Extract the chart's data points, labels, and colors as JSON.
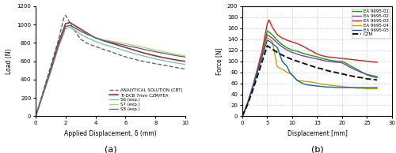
{
  "chart_a": {
    "xlabel": "Applied Displacement, δ (mm)",
    "ylabel": "Load (N)",
    "xlim": [
      0,
      10
    ],
    "ylim": [
      0,
      1200
    ],
    "yticks": [
      0,
      200,
      400,
      600,
      800,
      1000,
      1200
    ],
    "xticks": [
      0,
      2,
      4,
      6,
      8,
      10
    ],
    "label_a": "(a)",
    "analytical": {
      "x": [
        0,
        0.5,
        1.0,
        1.5,
        1.9,
        2.0,
        2.5,
        3.0,
        3.5,
        4.0,
        4.5,
        5.0,
        5.5,
        6.0,
        6.5,
        7.0,
        7.5,
        8.0,
        8.5,
        9.0,
        9.5,
        10.0
      ],
      "y": [
        0,
        270,
        540,
        820,
        1080,
        1100,
        960,
        840,
        790,
        760,
        730,
        705,
        675,
        648,
        625,
        605,
        588,
        573,
        558,
        543,
        528,
        515
      ],
      "color": "#666666",
      "style": "--",
      "lw": 1.0,
      "label": "ANALYTICAL SOLUTION (CBT)"
    },
    "czm": {
      "x": [
        0,
        0.5,
        1.0,
        1.5,
        2.0,
        2.3,
        2.5,
        3.0,
        3.5,
        4.0,
        4.5,
        5.0,
        5.5,
        6.0,
        6.5,
        7.0,
        7.5,
        8.0,
        8.5,
        9.0,
        9.5,
        10.0
      ],
      "y": [
        0,
        250,
        510,
        790,
        1010,
        1020,
        1000,
        950,
        900,
        855,
        825,
        800,
        775,
        750,
        725,
        700,
        678,
        658,
        640,
        625,
        610,
        598
      ],
      "color": "#8B3535",
      "style": "-",
      "lw": 1.2,
      "label": "Ti-DCB 7mm CZM/FEA"
    },
    "s6": {
      "x": [
        0,
        0.5,
        1.0,
        1.5,
        2.0,
        2.3,
        2.5,
        3.0,
        3.5,
        4.0,
        4.5,
        5.0,
        5.5,
        6.0,
        6.5,
        7.0,
        7.5,
        8.0,
        8.5,
        9.0,
        9.5,
        10.0
      ],
      "y": [
        0,
        240,
        480,
        740,
        955,
        970,
        950,
        895,
        850,
        815,
        785,
        762,
        738,
        712,
        688,
        665,
        645,
        625,
        608,
        592,
        578,
        565
      ],
      "color": "#70C0A0",
      "style": "-",
      "lw": 0.9,
      "label": "S6 (exp.)"
    },
    "s7": {
      "x": [
        0,
        0.5,
        1.0,
        1.5,
        2.0,
        2.3,
        2.5,
        3.0,
        3.5,
        4.0,
        4.5,
        5.0,
        5.5,
        6.0,
        6.5,
        7.0,
        7.5,
        8.0,
        8.5,
        9.0,
        9.5,
        10.0
      ],
      "y": [
        0,
        240,
        485,
        755,
        975,
        985,
        970,
        925,
        890,
        858,
        835,
        820,
        805,
        792,
        775,
        758,
        740,
        722,
        705,
        688,
        672,
        658
      ],
      "color": "#C8C870",
      "style": "-",
      "lw": 0.9,
      "label": "S7 (exp.)"
    },
    "s8": {
      "x": [
        0,
        0.5,
        1.0,
        1.5,
        2.0,
        2.3,
        2.5,
        3.0,
        3.5,
        4.0,
        4.5,
        5.0,
        5.5,
        6.0,
        6.5,
        7.0,
        7.5,
        8.0,
        8.5,
        9.0,
        9.5,
        10.0
      ],
      "y": [
        0,
        242,
        490,
        755,
        980,
        990,
        975,
        928,
        888,
        855,
        828,
        808,
        790,
        772,
        755,
        738,
        720,
        703,
        688,
        672,
        658,
        645
      ],
      "color": "#506080",
      "style": "-",
      "lw": 0.9,
      "label": "S8 (exp.)"
    }
  },
  "chart_b": {
    "xlabel": "Displacement [mm]",
    "ylabel": "Force [N]",
    "xlim": [
      0,
      30
    ],
    "ylim": [
      0,
      200
    ],
    "yticks": [
      0,
      20,
      40,
      60,
      80,
      100,
      120,
      140,
      160,
      180,
      200
    ],
    "xticks": [
      0,
      5,
      10,
      15,
      20,
      25,
      30
    ],
    "label_b": "(b)",
    "ea01": {
      "x": [
        0,
        1,
        2,
        3,
        4,
        5,
        5.5,
        6,
        7,
        8,
        9,
        10,
        11,
        12,
        13,
        14,
        15,
        16,
        17,
        18,
        19,
        20,
        21,
        22,
        23,
        24,
        25,
        26,
        27
      ],
      "y": [
        0,
        22,
        50,
        80,
        112,
        155,
        152,
        148,
        138,
        130,
        124,
        120,
        118,
        115,
        112,
        110,
        108,
        105,
        103,
        101,
        100,
        100,
        95,
        90,
        85,
        80,
        75,
        72,
        70
      ],
      "color": "#00AA00",
      "style": "-",
      "lw": 1.0,
      "label": "EA 9695-01"
    },
    "ea02": {
      "x": [
        0,
        1,
        2,
        3,
        4,
        5,
        5.5,
        6,
        7,
        8,
        9,
        10,
        11,
        12,
        13,
        14,
        15,
        16,
        17,
        18,
        19,
        20,
        21,
        22,
        23,
        24,
        25,
        26,
        27
      ],
      "y": [
        0,
        22,
        50,
        80,
        112,
        148,
        145,
        142,
        133,
        126,
        120,
        116,
        113,
        110,
        108,
        106,
        104,
        102,
        100,
        99,
        98,
        97,
        92,
        87,
        83,
        79,
        76,
        74,
        72
      ],
      "color": "#8040B0",
      "style": "-",
      "lw": 1.0,
      "label": "EA 9695-02"
    },
    "ea03": {
      "x": [
        0,
        1,
        2,
        3,
        4,
        5,
        5.3,
        5.5,
        6,
        7,
        8,
        9,
        10,
        11,
        12,
        13,
        14,
        15,
        16,
        17,
        18,
        19,
        20,
        21,
        22,
        23,
        24,
        25,
        26,
        27
      ],
      "y": [
        0,
        22,
        52,
        85,
        120,
        168,
        175,
        172,
        162,
        148,
        142,
        138,
        135,
        132,
        128,
        123,
        118,
        113,
        110,
        108,
        107,
        106,
        105,
        104,
        103,
        102,
        101,
        100,
        99,
        98
      ],
      "color": "#CC2020",
      "style": "-",
      "lw": 1.0,
      "label": "EA 9695-03"
    },
    "ea04": {
      "x": [
        0,
        1,
        2,
        3,
        4,
        5,
        5.5,
        6,
        7,
        8,
        9,
        10,
        10.5,
        11,
        12,
        13,
        14,
        15,
        16,
        17,
        18,
        19,
        20,
        21,
        22,
        23,
        24,
        25,
        26,
        27
      ],
      "y": [
        0,
        22,
        50,
        80,
        110,
        143,
        140,
        136,
        90,
        85,
        80,
        75,
        70,
        65,
        64,
        63,
        62,
        60,
        58,
        57,
        56,
        55,
        54,
        53,
        52,
        51,
        51,
        50,
        50,
        50
      ],
      "color": "#C8A000",
      "style": "-",
      "lw": 1.0,
      "label": "EA 9695-04"
    },
    "ea05": {
      "x": [
        0,
        1,
        2,
        3,
        4,
        5,
        5.5,
        6,
        7,
        8,
        9,
        9.5,
        10,
        11,
        12,
        13,
        14,
        15,
        16,
        17,
        18,
        19,
        20,
        21,
        22,
        23,
        24,
        25,
        26,
        27
      ],
      "y": [
        0,
        22,
        50,
        80,
        110,
        138,
        136,
        132,
        125,
        100,
        90,
        80,
        75,
        65,
        60,
        57,
        56,
        55,
        54,
        53,
        53,
        52,
        52,
        52,
        52,
        52,
        52,
        52,
        52,
        52
      ],
      "color": "#1060C0",
      "style": "-",
      "lw": 1.0,
      "label": "EA 9695-05"
    },
    "czm": {
      "x": [
        0,
        1,
        2,
        3,
        4,
        5,
        6,
        7,
        8,
        9,
        10,
        11,
        12,
        13,
        14,
        15,
        16,
        17,
        18,
        19,
        20,
        21,
        22,
        23,
        24,
        25,
        26,
        27
      ],
      "y": [
        0,
        20,
        45,
        72,
        100,
        128,
        122,
        116,
        111,
        107,
        103,
        100,
        97,
        94,
        91,
        88,
        86,
        83,
        81,
        79,
        77,
        75,
        73,
        71,
        70,
        68,
        67,
        66
      ],
      "color": "#111111",
      "style": "--",
      "lw": 1.4,
      "label": "CZM"
    }
  }
}
